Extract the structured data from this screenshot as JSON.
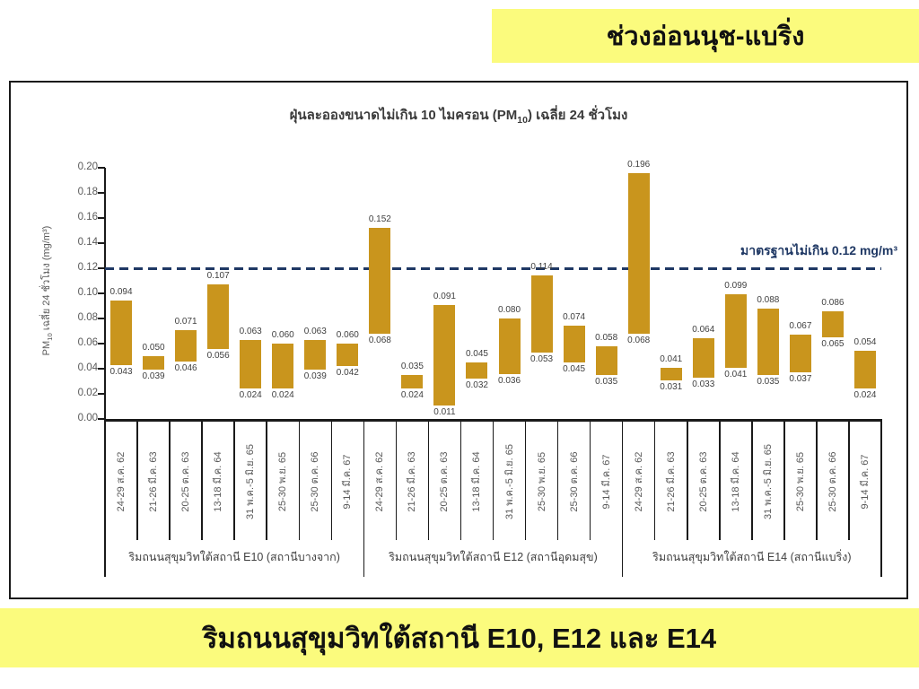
{
  "top_banner": {
    "text": "ช่วงอ่อนนุช-แบริ่ง"
  },
  "bottom_banner": {
    "text": "ริมถนนสุขุมวิทใต้สถานี E10, E12 และ E14"
  },
  "colors": {
    "banner_bg": "#FBFB7D",
    "bar": "#C9951D",
    "standard_line": "#1F3864",
    "axis": "#1a1a1a",
    "tick_text": "#595959",
    "value_text": "#404040"
  },
  "chart_data": {
    "type": "bar",
    "variant": "floating-range-bars",
    "title": {
      "pre": "ฝุ่นละอองขนาดไม่เกิน 10 ไมครอน (PM",
      "sub": "10",
      "post": ") เฉลี่ย 24 ชั่วโมง"
    },
    "ylabel": {
      "pre": "PM",
      "sub": "10",
      "post": " เฉลี่ย 24 ชั่วโมง (mg/m³)"
    },
    "ylim": [
      0,
      0.2
    ],
    "ytick_step": 0.02,
    "ytick_labels": [
      "0.00",
      "0.02",
      "0.04",
      "0.06",
      "0.08",
      "0.10",
      "0.12",
      "0.14",
      "0.16",
      "0.18",
      "0.20"
    ],
    "grid": false,
    "legend": false,
    "standard_line": {
      "value": 0.12,
      "label": "มาตรฐานไม่เกิน 0.12 mg/m³"
    },
    "categories": [
      "24-29 ส.ค. 62",
      "21-26 มี.ค. 63",
      "20-25 ต.ค. 63",
      "13-18 มี.ค. 64",
      "31 พ.ค.-5 มิ.ย. 65",
      "25-30 พ.ย. 65",
      "25-30 ต.ค. 66",
      "9-14 มี.ค. 67"
    ],
    "groups": [
      {
        "label": "ริมถนนสุขุมวิทใต้สถานี E10 (สถานีบางจาก)",
        "bars": [
          {
            "min": 0.043,
            "max": 0.094
          },
          {
            "min": 0.039,
            "max": 0.05
          },
          {
            "min": 0.046,
            "max": 0.071
          },
          {
            "min": 0.056,
            "max": 0.107
          },
          {
            "min": 0.024,
            "max": 0.063
          },
          {
            "min": 0.024,
            "max": 0.06
          },
          {
            "min": 0.039,
            "max": 0.063
          },
          {
            "min": 0.042,
            "max": 0.06
          }
        ]
      },
      {
        "label": "ริมถนนสุขุมวิทใต้สถานี E12 (สถานีอุดมสุข)",
        "bars": [
          {
            "min": 0.068,
            "max": 0.152
          },
          {
            "min": 0.024,
            "max": 0.035
          },
          {
            "min": 0.011,
            "max": 0.091
          },
          {
            "min": 0.032,
            "max": 0.045
          },
          {
            "min": 0.036,
            "max": 0.08
          },
          {
            "min": 0.053,
            "max": 0.114
          },
          {
            "min": 0.045,
            "max": 0.074
          },
          {
            "min": 0.035,
            "max": 0.058
          }
        ]
      },
      {
        "label": "ริมถนนสุขุมวิทใต้สถานี E14 (สถานีแบริ่ง)",
        "bars": [
          {
            "min": 0.068,
            "max": 0.196
          },
          {
            "min": 0.031,
            "max": 0.041
          },
          {
            "min": 0.033,
            "max": 0.064
          },
          {
            "min": 0.041,
            "max": 0.099
          },
          {
            "min": 0.035,
            "max": 0.088
          },
          {
            "min": 0.037,
            "max": 0.067
          },
          {
            "min": 0.065,
            "max": 0.086
          },
          {
            "min": 0.024,
            "max": 0.054
          }
        ]
      }
    ]
  }
}
